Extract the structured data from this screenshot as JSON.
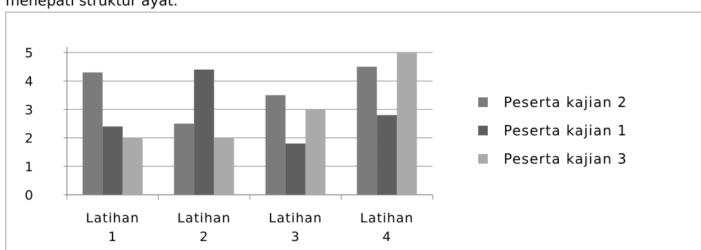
{
  "caption": "menepati struktur ayat.",
  "chart_data": {
    "type": "bar",
    "categories": [
      [
        "Latihan",
        "1"
      ],
      [
        "Latihan",
        "2"
      ],
      [
        "Latihan",
        "3"
      ],
      [
        "Latihan",
        "4"
      ]
    ],
    "series": [
      {
        "name": "Peserta kajian 2",
        "values": [
          4.3,
          2.5,
          3.5,
          4.5
        ],
        "color": "#7b7b7b"
      },
      {
        "name": "Peserta kajian 1",
        "values": [
          2.4,
          4.4,
          1.8,
          2.8
        ],
        "color": "#5f5f5f"
      },
      {
        "name": "Peserta kajian 3",
        "values": [
          2.0,
          2.0,
          3.0,
          5.0
        ],
        "color": "#aaaaaa"
      }
    ],
    "ylim": [
      0,
      5
    ],
    "yticks": [
      "0",
      "1",
      "2",
      "3",
      "4",
      "5"
    ],
    "grid": true,
    "legend": "right",
    "title": "",
    "xlabel": "",
    "ylabel": ""
  }
}
